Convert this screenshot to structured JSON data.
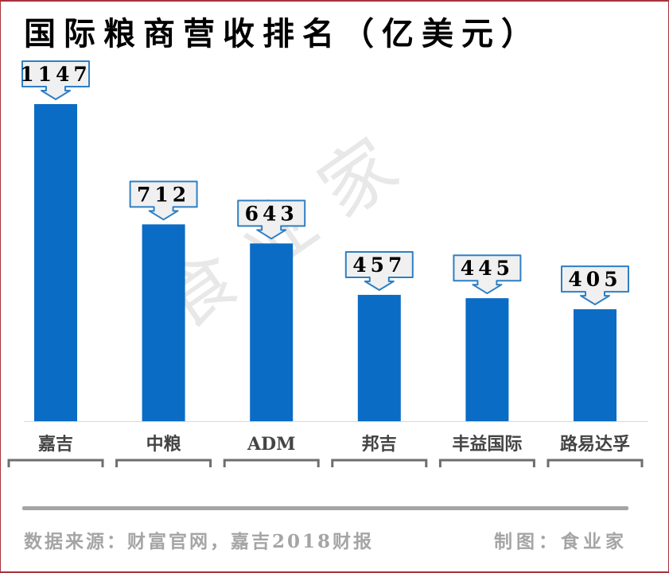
{
  "chart_data": {
    "type": "bar",
    "title": "国际粮商营收排名（亿美元）",
    "categories": [
      "嘉吉",
      "中粮",
      "ADM",
      "邦吉",
      "丰益国际",
      "路易达孚"
    ],
    "values": [
      1147,
      712,
      643,
      457,
      445,
      405
    ],
    "data_labels": [
      "1147",
      "712",
      "643",
      "457",
      "445",
      "405"
    ],
    "xlabel": "",
    "ylabel": "",
    "ylim": [
      0,
      1147
    ],
    "grid": false,
    "legend": "none",
    "colors": {
      "bar": "#0a6cc4",
      "callout_fill": "#f0f0f0",
      "callout_border": "#2e7fc4",
      "axis_label": "#444444",
      "footer": "#a5a5a5",
      "frame": "#a8323a"
    }
  },
  "watermark": "食业家",
  "footer": {
    "source": "数据来源：财富官网，嘉吉2018财报",
    "credit": "制图：食业家"
  }
}
